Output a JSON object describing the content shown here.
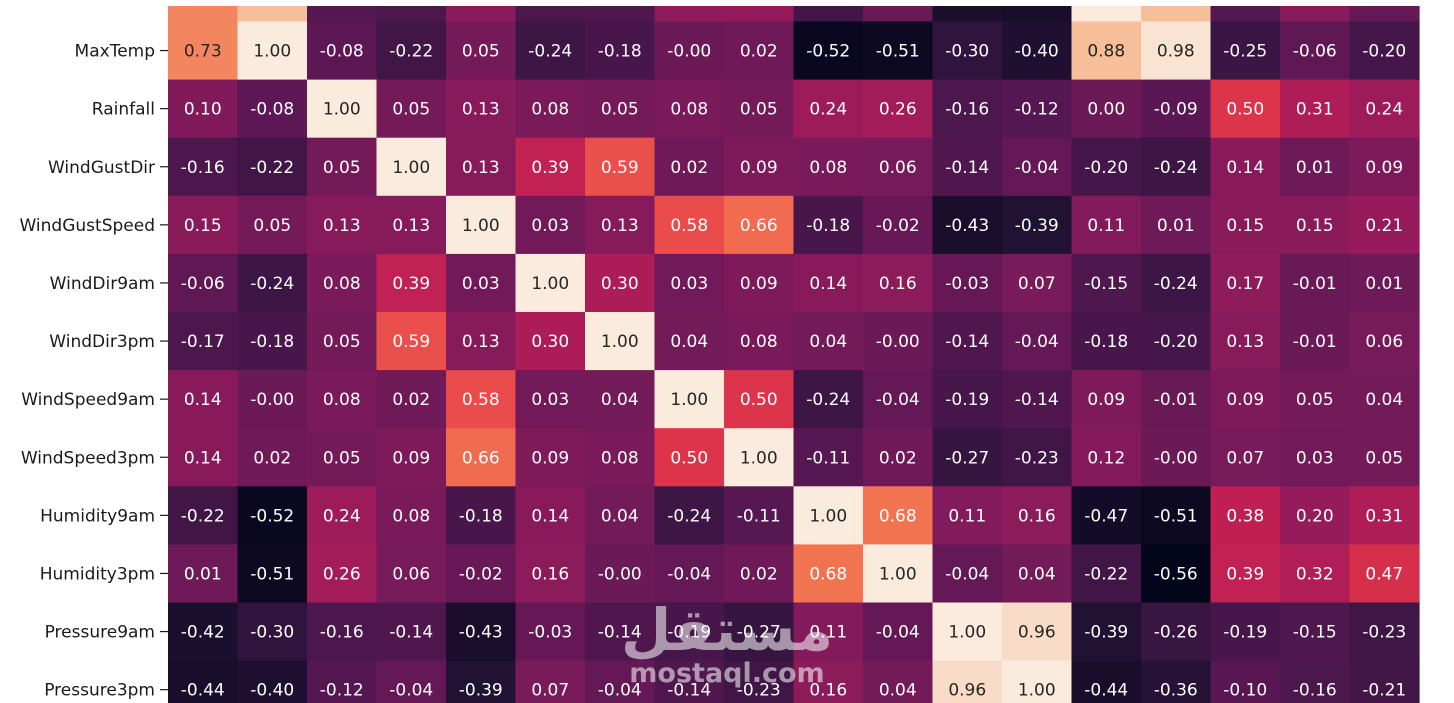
{
  "chart_data": {
    "type": "heatmap",
    "title": "",
    "xlabel": "",
    "ylabel": "",
    "color_scale": "rocket",
    "vmin": -0.56,
    "vmax": 1.0,
    "annotate_format": "0.00",
    "rows": [
      "MaxTemp",
      "Rainfall",
      "WindGustDir",
      "WindGustSpeed",
      "WindDir9am",
      "WindDir3pm",
      "WindSpeed9am",
      "WindSpeed3pm",
      "Humidity9am",
      "Humidity3pm",
      "Pressure9am",
      "Pressure3pm"
    ],
    "values": [
      [
        0.73,
        1.0,
        -0.08,
        -0.22,
        0.05,
        -0.24,
        -0.18,
        -0.0,
        0.02,
        -0.52,
        -0.51,
        -0.3,
        -0.4,
        0.88,
        0.98,
        -0.25,
        -0.06,
        -0.2
      ],
      [
        0.1,
        -0.08,
        1.0,
        0.05,
        0.13,
        0.08,
        0.05,
        0.08,
        0.05,
        0.24,
        0.26,
        -0.16,
        -0.12,
        0.0,
        -0.09,
        0.5,
        0.31,
        0.24
      ],
      [
        -0.16,
        -0.22,
        0.05,
        1.0,
        0.13,
        0.39,
        0.59,
        0.02,
        0.09,
        0.08,
        0.06,
        -0.14,
        -0.04,
        -0.2,
        -0.24,
        0.14,
        0.01,
        0.09
      ],
      [
        0.15,
        0.05,
        0.13,
        0.13,
        1.0,
        0.03,
        0.13,
        0.58,
        0.66,
        -0.18,
        -0.02,
        -0.43,
        -0.39,
        0.11,
        0.01,
        0.15,
        0.15,
        0.21
      ],
      [
        -0.06,
        -0.24,
        0.08,
        0.39,
        0.03,
        1.0,
        0.3,
        0.03,
        0.09,
        0.14,
        0.16,
        -0.03,
        0.07,
        -0.15,
        -0.24,
        0.17,
        -0.01,
        0.01
      ],
      [
        -0.17,
        -0.18,
        0.05,
        0.59,
        0.13,
        0.3,
        1.0,
        0.04,
        0.08,
        0.04,
        -0.0,
        -0.14,
        -0.04,
        -0.18,
        -0.2,
        0.13,
        -0.01,
        0.06
      ],
      [
        0.14,
        -0.0,
        0.08,
        0.02,
        0.58,
        0.03,
        0.04,
        1.0,
        0.5,
        -0.24,
        -0.04,
        -0.19,
        -0.14,
        0.09,
        -0.01,
        0.09,
        0.05,
        0.04
      ],
      [
        0.14,
        0.02,
        0.05,
        0.09,
        0.66,
        0.09,
        0.08,
        0.5,
        1.0,
        -0.11,
        0.02,
        -0.27,
        -0.23,
        0.12,
        -0.0,
        0.07,
        0.03,
        0.05
      ],
      [
        -0.22,
        -0.52,
        0.24,
        0.08,
        -0.18,
        0.14,
        0.04,
        -0.24,
        -0.11,
        1.0,
        0.68,
        0.11,
        0.16,
        -0.47,
        -0.51,
        0.38,
        0.2,
        0.31
      ],
      [
        0.01,
        -0.51,
        0.26,
        0.06,
        -0.02,
        0.16,
        -0.0,
        -0.04,
        0.02,
        0.68,
        1.0,
        -0.04,
        0.04,
        -0.22,
        -0.56,
        0.39,
        0.32,
        0.47
      ],
      [
        -0.42,
        -0.3,
        -0.16,
        -0.14,
        -0.43,
        -0.03,
        -0.14,
        -0.19,
        -0.27,
        0.11,
        -0.04,
        1.0,
        0.96,
        -0.39,
        -0.26,
        -0.19,
        -0.15,
        -0.23
      ],
      [
        -0.44,
        -0.4,
        -0.12,
        -0.04,
        -0.39,
        0.07,
        -0.04,
        -0.14,
        -0.23,
        0.16,
        0.04,
        0.96,
        1.0,
        -0.44,
        -0.36,
        -0.1,
        -0.16,
        -0.21
      ]
    ],
    "top_partial_row_values": [
      0.73,
      0.88,
      -0.12,
      -0.16,
      0.15,
      -0.17,
      -0.15,
      0.17,
      0.19,
      -0.22,
      -0.01,
      -0.42,
      -0.44,
      1.0,
      0.88,
      -0.13,
      0.13,
      -0.03
    ]
  },
  "watermark": {
    "arabic": "مستقل",
    "latin": "mostaql.com"
  }
}
